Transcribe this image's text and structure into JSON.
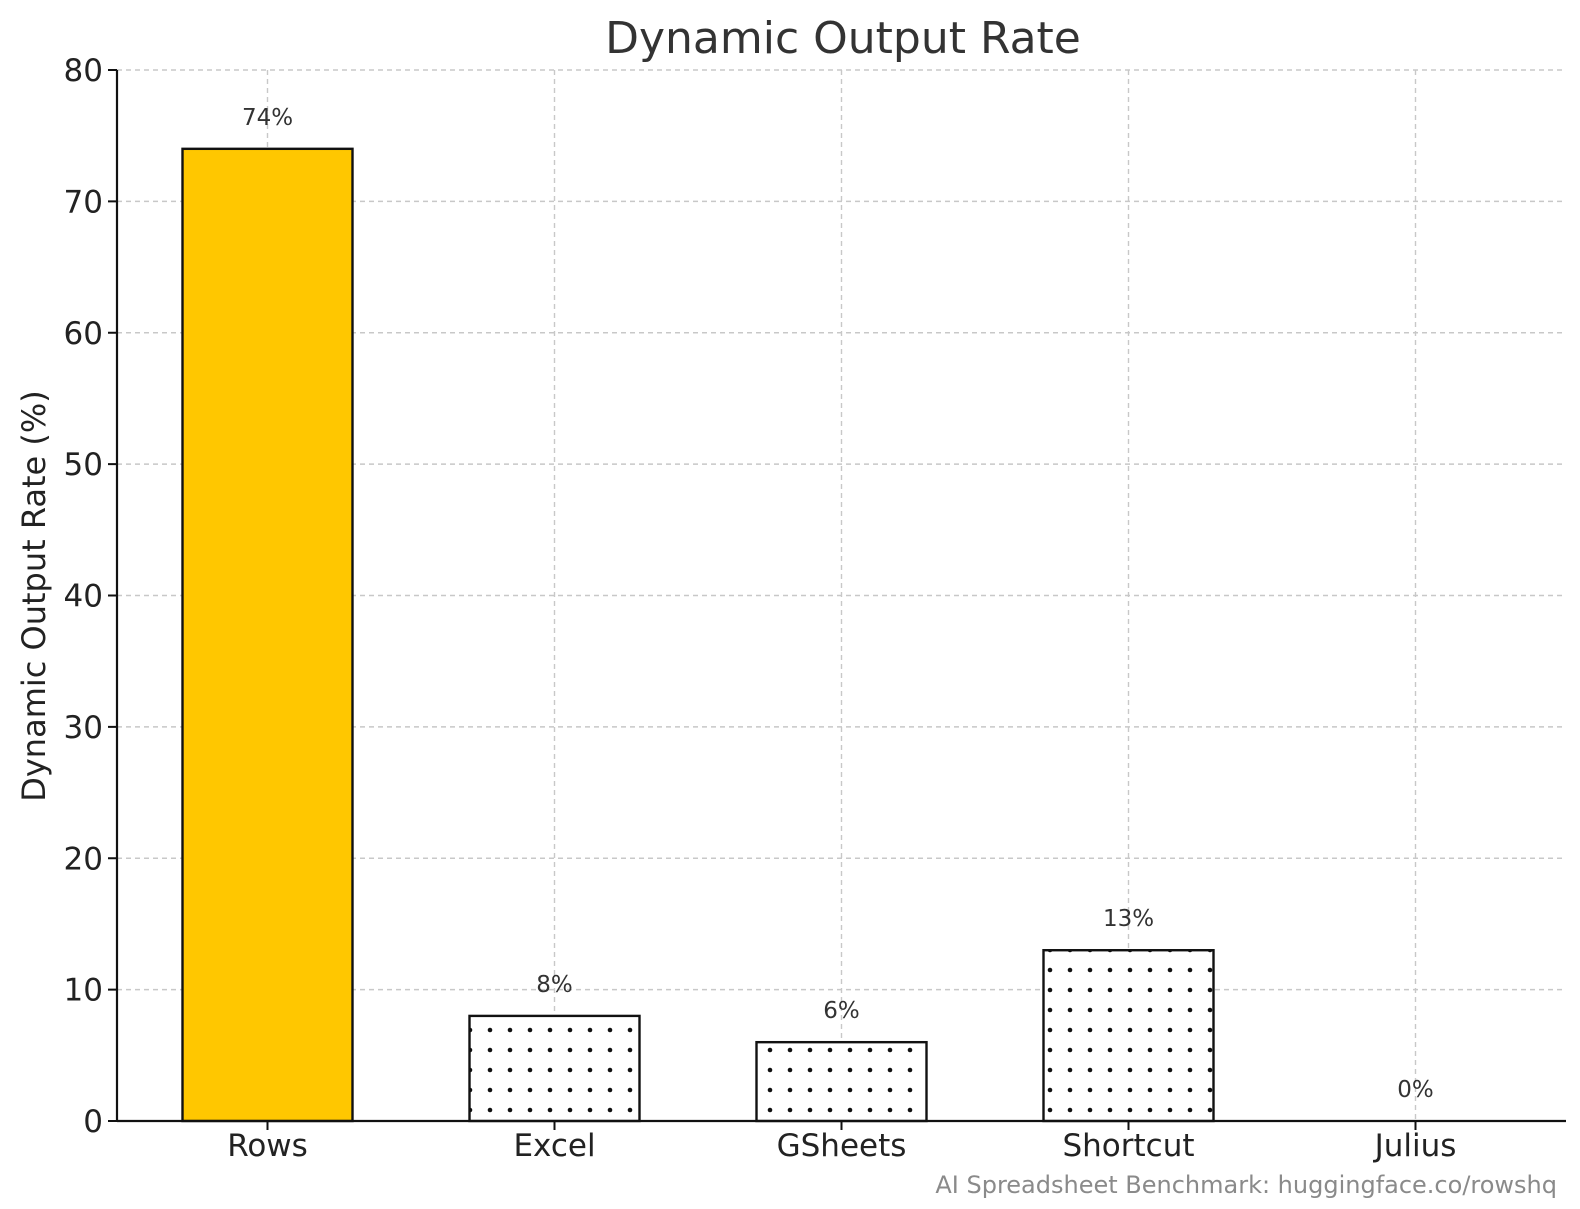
{
  "chart_data": {
    "type": "bar",
    "title": "Dynamic Output Rate",
    "xlabel": "",
    "ylabel": "Dynamic Output Rate (%)",
    "categories": [
      "Rows",
      "Excel",
      "GSheets",
      "Shortcut",
      "Julius"
    ],
    "values": [
      74,
      8,
      6,
      13,
      0
    ],
    "data_labels": [
      "74%",
      "8%",
      "6%",
      "13%",
      "0%"
    ],
    "ylim": [
      0,
      80
    ],
    "yticks": [
      0,
      10,
      20,
      30,
      40,
      50,
      60,
      70,
      80
    ],
    "grid": true,
    "bar_styles": [
      "solid",
      "dotted",
      "dotted",
      "dotted",
      "dotted"
    ],
    "colors": {
      "highlight": "#FFC700",
      "other": "#FFFFFF",
      "edge": "#111111",
      "dots": "#111111",
      "grid": "#C8C8C8"
    }
  },
  "footer": "AI Spreadsheet Benchmark: huggingface.co/rowshq"
}
